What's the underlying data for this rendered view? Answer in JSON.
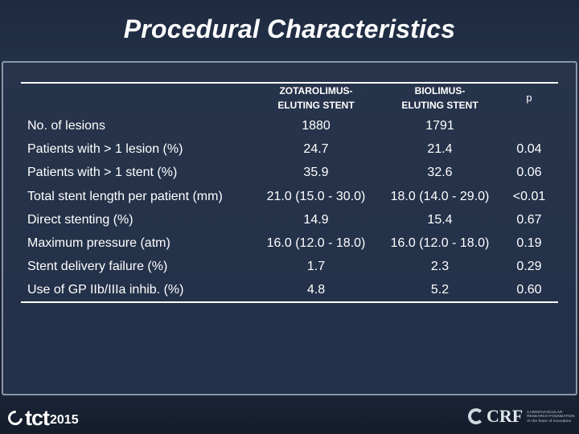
{
  "slide": {
    "title": "Procedural Characteristics"
  },
  "table": {
    "columns": [
      "ZOTAROLIMUS-\nELUTING STENT",
      "BIOLIMUS-\nELUTING STENT",
      "p"
    ],
    "header": {
      "zotarolimus_line1": "ZOTAROLIMUS-",
      "zotarolimus_line2": "ELUTING STENT",
      "biolimus_line1": "BIOLIMUS-",
      "biolimus_line2": "ELUTING STENT",
      "p": "p"
    },
    "rows": [
      {
        "label": "No. of lesions",
        "zes": "1880",
        "bes": "1791",
        "p": ""
      },
      {
        "label": "Patients with > 1 lesion (%)",
        "zes": "24.7",
        "bes": "21.4",
        "p": "0.04"
      },
      {
        "label": "Patients with > 1 stent (%)",
        "zes": "35.9",
        "bes": "32.6",
        "p": "0.06"
      },
      {
        "label": "Total stent length per patient (mm)",
        "zes": "21.0 (15.0 - 30.0)",
        "bes": "18.0 (14.0 - 29.0)",
        "p": "<0.01"
      },
      {
        "label": "Direct stenting (%)",
        "zes": "14.9",
        "bes": "15.4",
        "p": "0.67"
      },
      {
        "label": "Maximum pressure (atm)",
        "zes": "16.0 (12.0 - 18.0)",
        "bes": "16.0 (12.0 - 18.0)",
        "p": "0.19"
      },
      {
        "label": "Stent delivery failure (%)",
        "zes": "1.7",
        "bes": "2.3",
        "p": "0.29"
      },
      {
        "label": "Use of GP IIb/IIIa inhib. (%)",
        "zes": "4.8",
        "bes": "5.2",
        "p": "0.60"
      }
    ]
  },
  "footer": {
    "tct_text": "tct",
    "tct_year": "2015",
    "crf_text": "CRF",
    "crf_sub_line1": "CARDIOVASCULAR",
    "crf_sub_line2": "RESEARCH FOUNDATION",
    "crf_tagline": "At the heart of innovation"
  },
  "colors": {
    "background": "#1b2638",
    "text": "#ffffff",
    "frame_border": "#8a96a8"
  }
}
